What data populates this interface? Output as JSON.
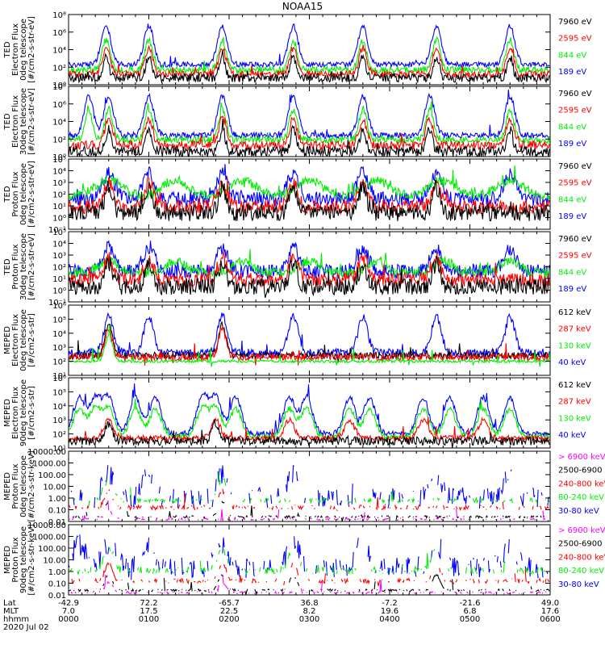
{
  "chart_data": {
    "type": "line",
    "title": "NOAA15",
    "panels": [
      {
        "name": "ted-electron-0deg",
        "ylabel_lines": [
          "TED",
          "Electron Flux",
          "0deg telescope",
          "[#/cm2-s-str-eV]"
        ],
        "ylog": true,
        "ylim_exp": [
          0,
          8
        ],
        "ytick_labels": [
          "10⁰",
          "10²",
          "10⁴",
          "10⁶",
          "10⁸"
        ],
        "ytick_exp": [
          0,
          2,
          4,
          6,
          8
        ],
        "legend": [
          {
            "label": "7960 eV",
            "color": "#000000"
          },
          {
            "label": "2595 eV",
            "color": "#ff0000"
          },
          {
            "label": "844 eV",
            "color": "#00ee00"
          },
          {
            "label": "189 eV",
            "color": "#0000ff"
          }
        ],
        "series": [
          {
            "color": "#0000ff",
            "base": 2.3,
            "noise": 0.3,
            "peak_amp": 4.4,
            "peak_w": 5,
            "peaks": [
              28,
              60,
              115,
              168,
              220,
              275,
              330
            ],
            "gap": [
              12,
              18
            ]
          },
          {
            "color": "#00ee00",
            "base": 1.7,
            "noise": 0.4,
            "peak_amp": 3.4,
            "peak_w": 4,
            "peaks": [
              28,
              60,
              115,
              168,
              220,
              275,
              330
            ]
          },
          {
            "color": "#ff0000",
            "base": 1.2,
            "noise": 0.4,
            "peak_amp": 3.0,
            "peak_w": 4,
            "peaks": [
              28,
              60,
              115,
              168,
              220,
              275,
              330
            ]
          },
          {
            "color": "#000000",
            "base": 0.8,
            "noise": 0.5,
            "peak_amp": 2.4,
            "peak_w": 3,
            "peaks": [
              28,
              60,
              115,
              168,
              220,
              275,
              330
            ]
          }
        ]
      },
      {
        "name": "ted-electron-30deg",
        "ylabel_lines": [
          "TED",
          "Electron Flux",
          "30deg telescope",
          "[#/cm2-s-str-eV]"
        ],
        "ylog": true,
        "ylim_exp": [
          0,
          8
        ],
        "ytick_labels": [
          "10⁰",
          "10²",
          "10⁴",
          "10⁶",
          "10⁸"
        ],
        "ytick_exp": [
          0,
          2,
          4,
          6,
          8
        ],
        "legend": [
          {
            "label": "7960 eV",
            "color": "#000000"
          },
          {
            "label": "2595 eV",
            "color": "#ff0000"
          },
          {
            "label": "844 eV",
            "color": "#00ee00"
          },
          {
            "label": "189 eV",
            "color": "#0000ff"
          }
        ],
        "series": [
          {
            "color": "#0000ff",
            "base": 2.4,
            "noise": 0.35,
            "peak_amp": 4.5,
            "peak_w": 5,
            "peaks": [
              15,
              30,
              60,
              115,
              168,
              220,
              270,
              330
            ]
          },
          {
            "color": "#00ee00",
            "base": 1.9,
            "noise": 0.4,
            "peak_amp": 3.5,
            "peak_w": 4,
            "peaks": [
              15,
              30,
              60,
              115,
              168,
              220,
              270,
              330
            ]
          },
          {
            "color": "#ff0000",
            "base": 1.3,
            "noise": 0.5,
            "peak_amp": 3.0,
            "peak_w": 4,
            "peaks": [
              30,
              60,
              115,
              168,
              220,
              270,
              330
            ]
          },
          {
            "color": "#000000",
            "base": 0.6,
            "noise": 0.6,
            "peak_amp": 2.6,
            "peak_w": 3,
            "peaks": [
              30,
              60,
              115,
              168,
              220,
              270,
              330
            ]
          }
        ]
      },
      {
        "name": "ted-proton-0deg",
        "ylabel_lines": [
          "TED",
          "Proton Flux",
          "0deg telescope",
          "[#/cm2-s-str-eV]"
        ],
        "ylog": true,
        "ylim_exp": [
          -1,
          5
        ],
        "ytick_labels": [
          "10⁻¹",
          "10⁰",
          "10¹",
          "10²",
          "10³",
          "10⁴",
          "10⁵"
        ],
        "ytick_exp": [
          -1,
          0,
          1,
          2,
          3,
          4,
          5
        ],
        "legend": [
          {
            "label": "7960 eV",
            "color": "#000000"
          },
          {
            "label": "2595 eV",
            "color": "#ff0000"
          },
          {
            "label": "844 eV",
            "color": "#00ee00"
          },
          {
            "label": "189 eV",
            "color": "#0000ff"
          }
        ],
        "series": [
          {
            "color": "#0000ff",
            "base": 1.6,
            "noise": 0.6,
            "peak_amp": 2.2,
            "peak_w": 6,
            "peaks": [
              30,
              60,
              115,
              168,
              220,
              275,
              330
            ]
          },
          {
            "color": "#00ee00",
            "base": 1.8,
            "noise": 0.4,
            "peak_amp": 1.4,
            "peak_w": 14,
            "peaks": [
              30,
              80,
              130,
              180,
              230,
              280,
              330
            ]
          },
          {
            "color": "#ff0000",
            "base": 0.9,
            "noise": 0.6,
            "peak_amp": 2.0,
            "peak_w": 5,
            "peaks": [
              30,
              60,
              115,
              168,
              220,
              275
            ]
          },
          {
            "color": "#000000",
            "base": 0.4,
            "noise": 0.7,
            "peak_amp": 2.2,
            "peak_w": 4,
            "peaks": [
              30,
              60,
              115,
              168,
              220,
              275
            ]
          }
        ]
      },
      {
        "name": "ted-proton-30deg",
        "ylabel_lines": [
          "TED",
          "Proton Flux",
          "30deg telescope",
          "[#/cm2-s-str-eV]"
        ],
        "ylog": true,
        "ylim_exp": [
          -1,
          5
        ],
        "ytick_labels": [
          "10⁻¹",
          "10⁰",
          "10¹",
          "10²",
          "10³",
          "10⁴",
          "10⁵"
        ],
        "ytick_exp": [
          -1,
          0,
          1,
          2,
          3,
          4,
          5
        ],
        "legend": [
          {
            "label": "7960 eV",
            "color": "#000000"
          },
          {
            "label": "2595 eV",
            "color": "#ff0000"
          },
          {
            "label": "844 eV",
            "color": "#00ee00"
          },
          {
            "label": "189 eV",
            "color": "#0000ff"
          }
        ],
        "series": [
          {
            "color": "#0000ff",
            "base": 1.6,
            "noise": 0.6,
            "peak_amp": 2.0,
            "peak_w": 6,
            "peaks": [
              30,
              60,
              115,
              168,
              220,
              275,
              330
            ]
          },
          {
            "color": "#00ee00",
            "base": 1.5,
            "noise": 0.4,
            "peak_amp": 1.0,
            "peak_w": 10,
            "peaks": [
              30,
              80,
              130,
              180,
              230,
              280,
              330
            ]
          },
          {
            "color": "#ff0000",
            "base": 0.9,
            "noise": 0.6,
            "peak_amp": 1.8,
            "peak_w": 5,
            "peaks": [
              30,
              60,
              115,
              168,
              220,
              275
            ]
          },
          {
            "color": "#000000",
            "base": 0.3,
            "noise": 0.7,
            "peak_amp": 2.0,
            "peak_w": 4,
            "peaks": [
              30,
              60,
              115,
              168,
              220,
              275
            ]
          }
        ]
      },
      {
        "name": "meped-electron-0deg",
        "ylabel_lines": [
          "MEPED",
          "Electron Flux",
          "0deg telescope",
          "[#/cm2-s-str]"
        ],
        "ylog": true,
        "ylim_exp": [
          1,
          6
        ],
        "ytick_labels": [
          "10¹",
          "10²",
          "10³",
          "10⁴",
          "10⁵",
          "10⁶"
        ],
        "ytick_exp": [
          1,
          2,
          3,
          4,
          5,
          6
        ],
        "legend": [
          {
            "label": "612 keV",
            "color": "#000000"
          },
          {
            "label": "287 keV",
            "color": "#ff0000"
          },
          {
            "label": "130 keV",
            "color": "#00ee00"
          },
          {
            "label": "40 keV",
            "color": "#0000ff"
          }
        ],
        "series": [
          {
            "color": "#0000ff",
            "base": 2.6,
            "noise": 0.3,
            "peak_amp": 2.6,
            "peak_w": 5,
            "peaks": [
              30,
              60,
              115,
              168,
              220,
              275,
              330
            ]
          },
          {
            "color": "#000000",
            "base": 2.4,
            "noise": 0.25,
            "peak_amp": 2.2,
            "peak_w": 4,
            "peaks": [
              30,
              115
            ]
          },
          {
            "color": "#ff0000",
            "base": 2.3,
            "noise": 0.25,
            "peak_amp": 2.0,
            "peak_w": 4,
            "peaks": [
              30,
              115
            ]
          },
          {
            "color": "#00ee00",
            "base": 2.0,
            "noise": 0.1,
            "peak_amp": 1.8,
            "peak_w": 4,
            "peaks": [
              30
            ]
          }
        ]
      },
      {
        "name": "meped-electron-90deg",
        "ylabel_lines": [
          "MEPED",
          "Electron Flux",
          "90deg telescope",
          "[#/cm2-s-str]"
        ],
        "ylog": true,
        "ylim_exp": [
          1,
          6
        ],
        "ytick_labels": [
          "10¹",
          "10²",
          "10³",
          "10⁴",
          "10⁵",
          "10⁶"
        ],
        "ytick_exp": [
          1,
          2,
          3,
          4,
          5,
          6
        ],
        "legend": [
          {
            "label": "612 keV",
            "color": "#000000"
          },
          {
            "label": "287 keV",
            "color": "#ff0000"
          },
          {
            "label": "130 keV",
            "color": "#00ee00"
          },
          {
            "label": "40 keV",
            "color": "#0000ff"
          }
        ],
        "series": [
          {
            "color": "#0000ff",
            "base": 2.0,
            "noise": 0.2,
            "peak_amp": 2.6,
            "peak_w": 6,
            "peaks": [
              8,
              20,
              30,
              50,
              65,
              100,
              110,
              125,
              165,
              178,
              210,
              225,
              265,
              285,
              310,
              330
            ]
          },
          {
            "color": "#00ee00",
            "base": 1.8,
            "noise": 0.2,
            "peak_amp": 2.0,
            "peak_w": 6,
            "peaks": [
              8,
              20,
              30,
              50,
              65,
              100,
              110,
              125,
              165,
              178,
              210,
              225,
              265,
              285,
              310,
              330
            ]
          },
          {
            "color": "#ff0000",
            "base": 1.7,
            "noise": 0.2,
            "peak_amp": 1.3,
            "peak_w": 5,
            "peaks": [
              30,
              110,
              165,
              210,
              265,
              310
            ]
          },
          {
            "color": "#000000",
            "base": 1.5,
            "noise": 0.3,
            "peak_amp": 1.2,
            "peak_w": 4,
            "peaks": [
              30,
              110
            ]
          }
        ]
      },
      {
        "name": "meped-proton-0deg",
        "ylabel_lines": [
          "MEPED",
          "Proton Flux",
          "0deg telescope",
          "[#/cm2-s-str-keV]"
        ],
        "ylog": true,
        "ylim_exp": [
          -2,
          4
        ],
        "ytick_labels": [
          "0.01",
          "0.10",
          "1.00",
          "10.00",
          "100.00",
          "1000.00",
          "10000.00"
        ],
        "ytick_exp": [
          -2,
          -1,
          0,
          1,
          2,
          3,
          4
        ],
        "legend": [
          {
            "label": "> 6900 keV",
            "color": "#ff00ff"
          },
          {
            "label": "2500-6900",
            "color": "#000000"
          },
          {
            "label": "240-800 keV",
            "color": "#ff0000"
          },
          {
            "label": "80-240 keV",
            "color": "#00ee00"
          },
          {
            "label": "30-80 keV",
            "color": "#0000ff"
          }
        ],
        "series": [
          {
            "color": "#0000ff",
            "base": 0.0,
            "noise": 0.9,
            "peak_amp": 2.0,
            "peak_w": 6,
            "peaks": [
              30,
              60,
              115,
              168,
              220,
              275,
              330
            ],
            "sparse": true
          },
          {
            "color": "#00ee00",
            "base": -0.2,
            "noise": 0.2,
            "peak_amp": 1.8,
            "peak_w": 5,
            "peaks": [
              30,
              115
            ],
            "sparse": true
          },
          {
            "color": "#ff0000",
            "base": -0.8,
            "noise": 0.2,
            "peak_amp": 1.4,
            "peak_w": 4,
            "peaks": [
              30,
              115
            ],
            "sparse": true
          },
          {
            "color": "#000000",
            "base": -1.6,
            "noise": 0.1,
            "peak_amp": 1.3,
            "peak_w": 4,
            "peaks": [
              30,
              115
            ],
            "sparse": true
          },
          {
            "color": "#ff00ff",
            "base": -1.8,
            "noise": 0.1,
            "peak_amp": 0.7,
            "peak_w": 4,
            "peaks": [
              30
            ],
            "sparse": true
          }
        ]
      },
      {
        "name": "meped-proton-90deg",
        "ylabel_lines": [
          "MEPED",
          "Proton Flux",
          "90deg telescope",
          "[#/cm2-s-str-keV]"
        ],
        "ylog": true,
        "ylim_exp": [
          -2,
          4
        ],
        "ytick_labels": [
          "0.01",
          "0.10",
          "1.00",
          "10.00",
          "100.00",
          "1000.00",
          "10000.00"
        ],
        "ytick_exp": [
          -2,
          -1,
          0,
          1,
          2,
          3,
          4
        ],
        "legend": [
          {
            "label": "> 6900 keV",
            "color": "#ff00ff"
          },
          {
            "label": "2500-6900",
            "color": "#000000"
          },
          {
            "label": "240-800 keV",
            "color": "#ff0000"
          },
          {
            "label": "80-240 keV",
            "color": "#00ee00"
          },
          {
            "label": "30-80 keV",
            "color": "#0000ff"
          }
        ],
        "series": [
          {
            "color": "#0000ff",
            "base": 0.3,
            "noise": 0.9,
            "peak_amp": 2.0,
            "peak_w": 7,
            "peaks": [
              8,
              30,
              60,
              115,
              168,
              220,
              275,
              330
            ],
            "sparse": true
          },
          {
            "color": "#00ee00",
            "base": 0.1,
            "noise": 0.3,
            "peak_amp": 1.8,
            "peak_w": 5,
            "peaks": [
              30,
              115,
              168,
              275
            ],
            "sparse": true
          },
          {
            "color": "#ff0000",
            "base": -0.8,
            "noise": 0.2,
            "peak_amp": 1.5,
            "peak_w": 4,
            "peaks": [
              30,
              115,
              168,
              275
            ],
            "sparse": true
          },
          {
            "color": "#000000",
            "base": -1.6,
            "noise": 0.1,
            "peak_amp": 1.3,
            "peak_w": 4,
            "peaks": [
              30,
              115,
              168,
              275
            ],
            "sparse": true
          },
          {
            "color": "#ff00ff",
            "base": -1.8,
            "noise": 0.1,
            "peak_amp": 0.9,
            "peak_w": 4,
            "peaks": [
              30,
              115
            ],
            "sparse": true
          }
        ]
      }
    ],
    "x_axis": {
      "row_labels": [
        "Lat",
        "MLT",
        "hhmm",
        "2020 Jul 02"
      ],
      "ticks": [
        {
          "lat": "-42.9",
          "mlt": "7.0",
          "hhmm": "0000"
        },
        {
          "lat": "72.2",
          "mlt": "17.5",
          "hhmm": "0100"
        },
        {
          "lat": "-65.7",
          "mlt": "22.5",
          "hhmm": "0200"
        },
        {
          "lat": "36.8",
          "mlt": "8.2",
          "hhmm": "0300"
        },
        {
          "lat": "-7.2",
          "mlt": "19.6",
          "hhmm": "0400"
        },
        {
          "lat": "-21.6",
          "mlt": "6.8",
          "hhmm": "0500"
        },
        {
          "lat": "49.0",
          "mlt": "17.6",
          "hhmm": "0600"
        }
      ],
      "minutes_range": [
        0,
        360
      ]
    }
  }
}
